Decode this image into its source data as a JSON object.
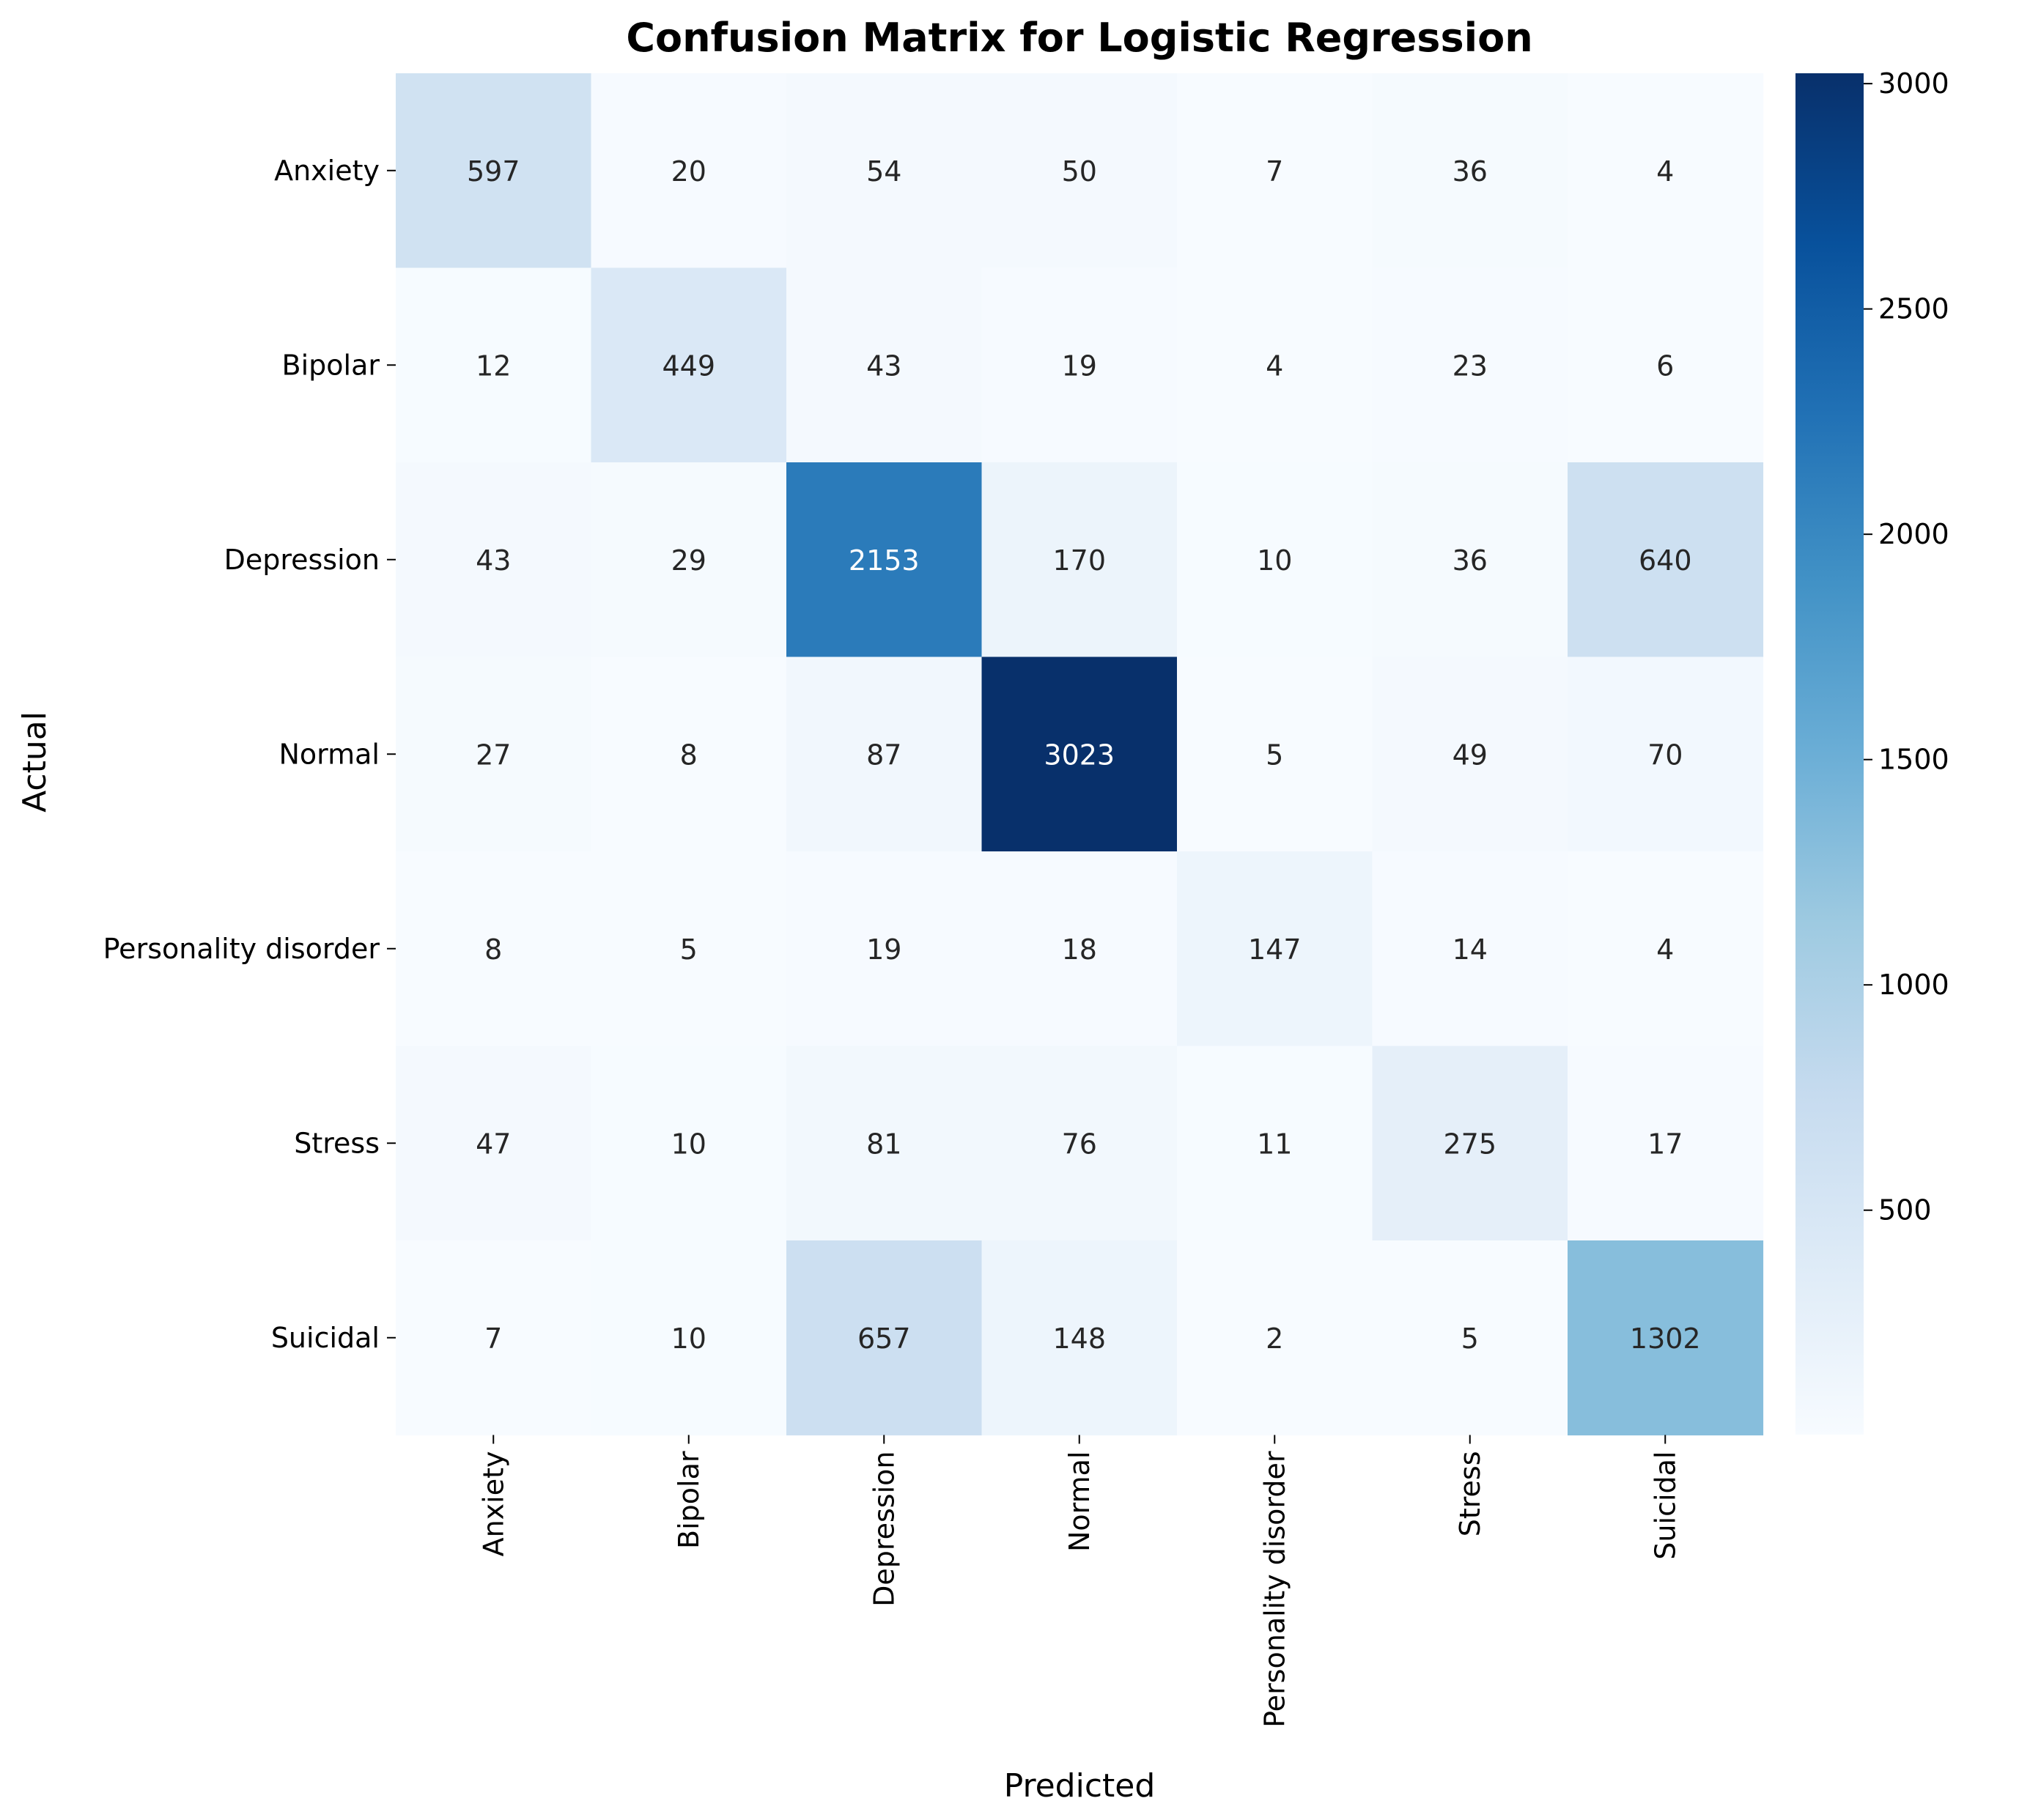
{
  "chart_data": {
    "type": "heatmap",
    "title": "Confusion Matrix for Logistic Regression",
    "xlabel": "Predicted",
    "ylabel": "Actual",
    "x_categories": [
      "Anxiety",
      "Bipolar",
      "Depression",
      "Normal",
      "Personality disorder",
      "Stress",
      "Suicidal"
    ],
    "y_categories": [
      "Anxiety",
      "Bipolar",
      "Depression",
      "Normal",
      "Personality disorder",
      "Stress",
      "Suicidal"
    ],
    "values": [
      [
        597,
        20,
        54,
        50,
        7,
        36,
        4
      ],
      [
        12,
        449,
        43,
        19,
        4,
        23,
        6
      ],
      [
        43,
        29,
        2153,
        170,
        10,
        36,
        640
      ],
      [
        27,
        8,
        87,
        3023,
        5,
        49,
        70
      ],
      [
        8,
        5,
        19,
        18,
        147,
        14,
        4
      ],
      [
        47,
        10,
        81,
        76,
        11,
        275,
        17
      ],
      [
        7,
        10,
        657,
        148,
        2,
        5,
        1302
      ]
    ],
    "colormap": "Blues",
    "colorbar": {
      "range": [
        2,
        3023
      ],
      "ticks": [
        500,
        1000,
        1500,
        2000,
        2500,
        3000
      ]
    }
  }
}
